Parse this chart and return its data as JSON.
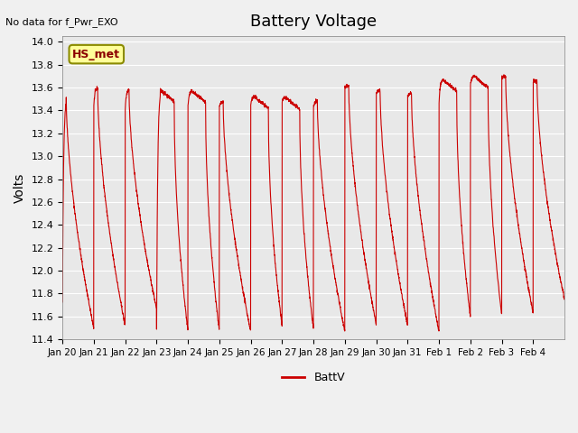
{
  "title": "Battery Voltage",
  "ylabel": "Volts",
  "annotation": "No data for f_Pwr_EXO",
  "legend_label": "BattV",
  "legend_line_color": "#CC0000",
  "line_color": "#CC0000",
  "fig_bg_color": "#F0F0F0",
  "plot_bg_color": "#E8E8E8",
  "ylim": [
    11.4,
    14.05
  ],
  "yticks": [
    11.4,
    11.6,
    11.8,
    12.0,
    12.2,
    12.4,
    12.6,
    12.8,
    13.0,
    13.2,
    13.4,
    13.6,
    13.8,
    14.0
  ],
  "xtick_labels": [
    "Jan 20",
    "Jan 21",
    "Jan 22",
    "Jan 23",
    "Jan 24",
    "Jan 25",
    "Jan 26",
    "Jan 27",
    "Jan 28",
    "Jan 29",
    "Jan 30",
    "Jan 31",
    "Feb 1",
    "Feb 2",
    "Feb 3",
    "Feb 4"
  ],
  "hs_met_label": "HS_met",
  "hs_met_box_color": "#FFFF99",
  "hs_met_border_color": "#8B8B00",
  "hs_met_text_color": "#8B0000",
  "n_days": 16,
  "points_per_day": 200
}
